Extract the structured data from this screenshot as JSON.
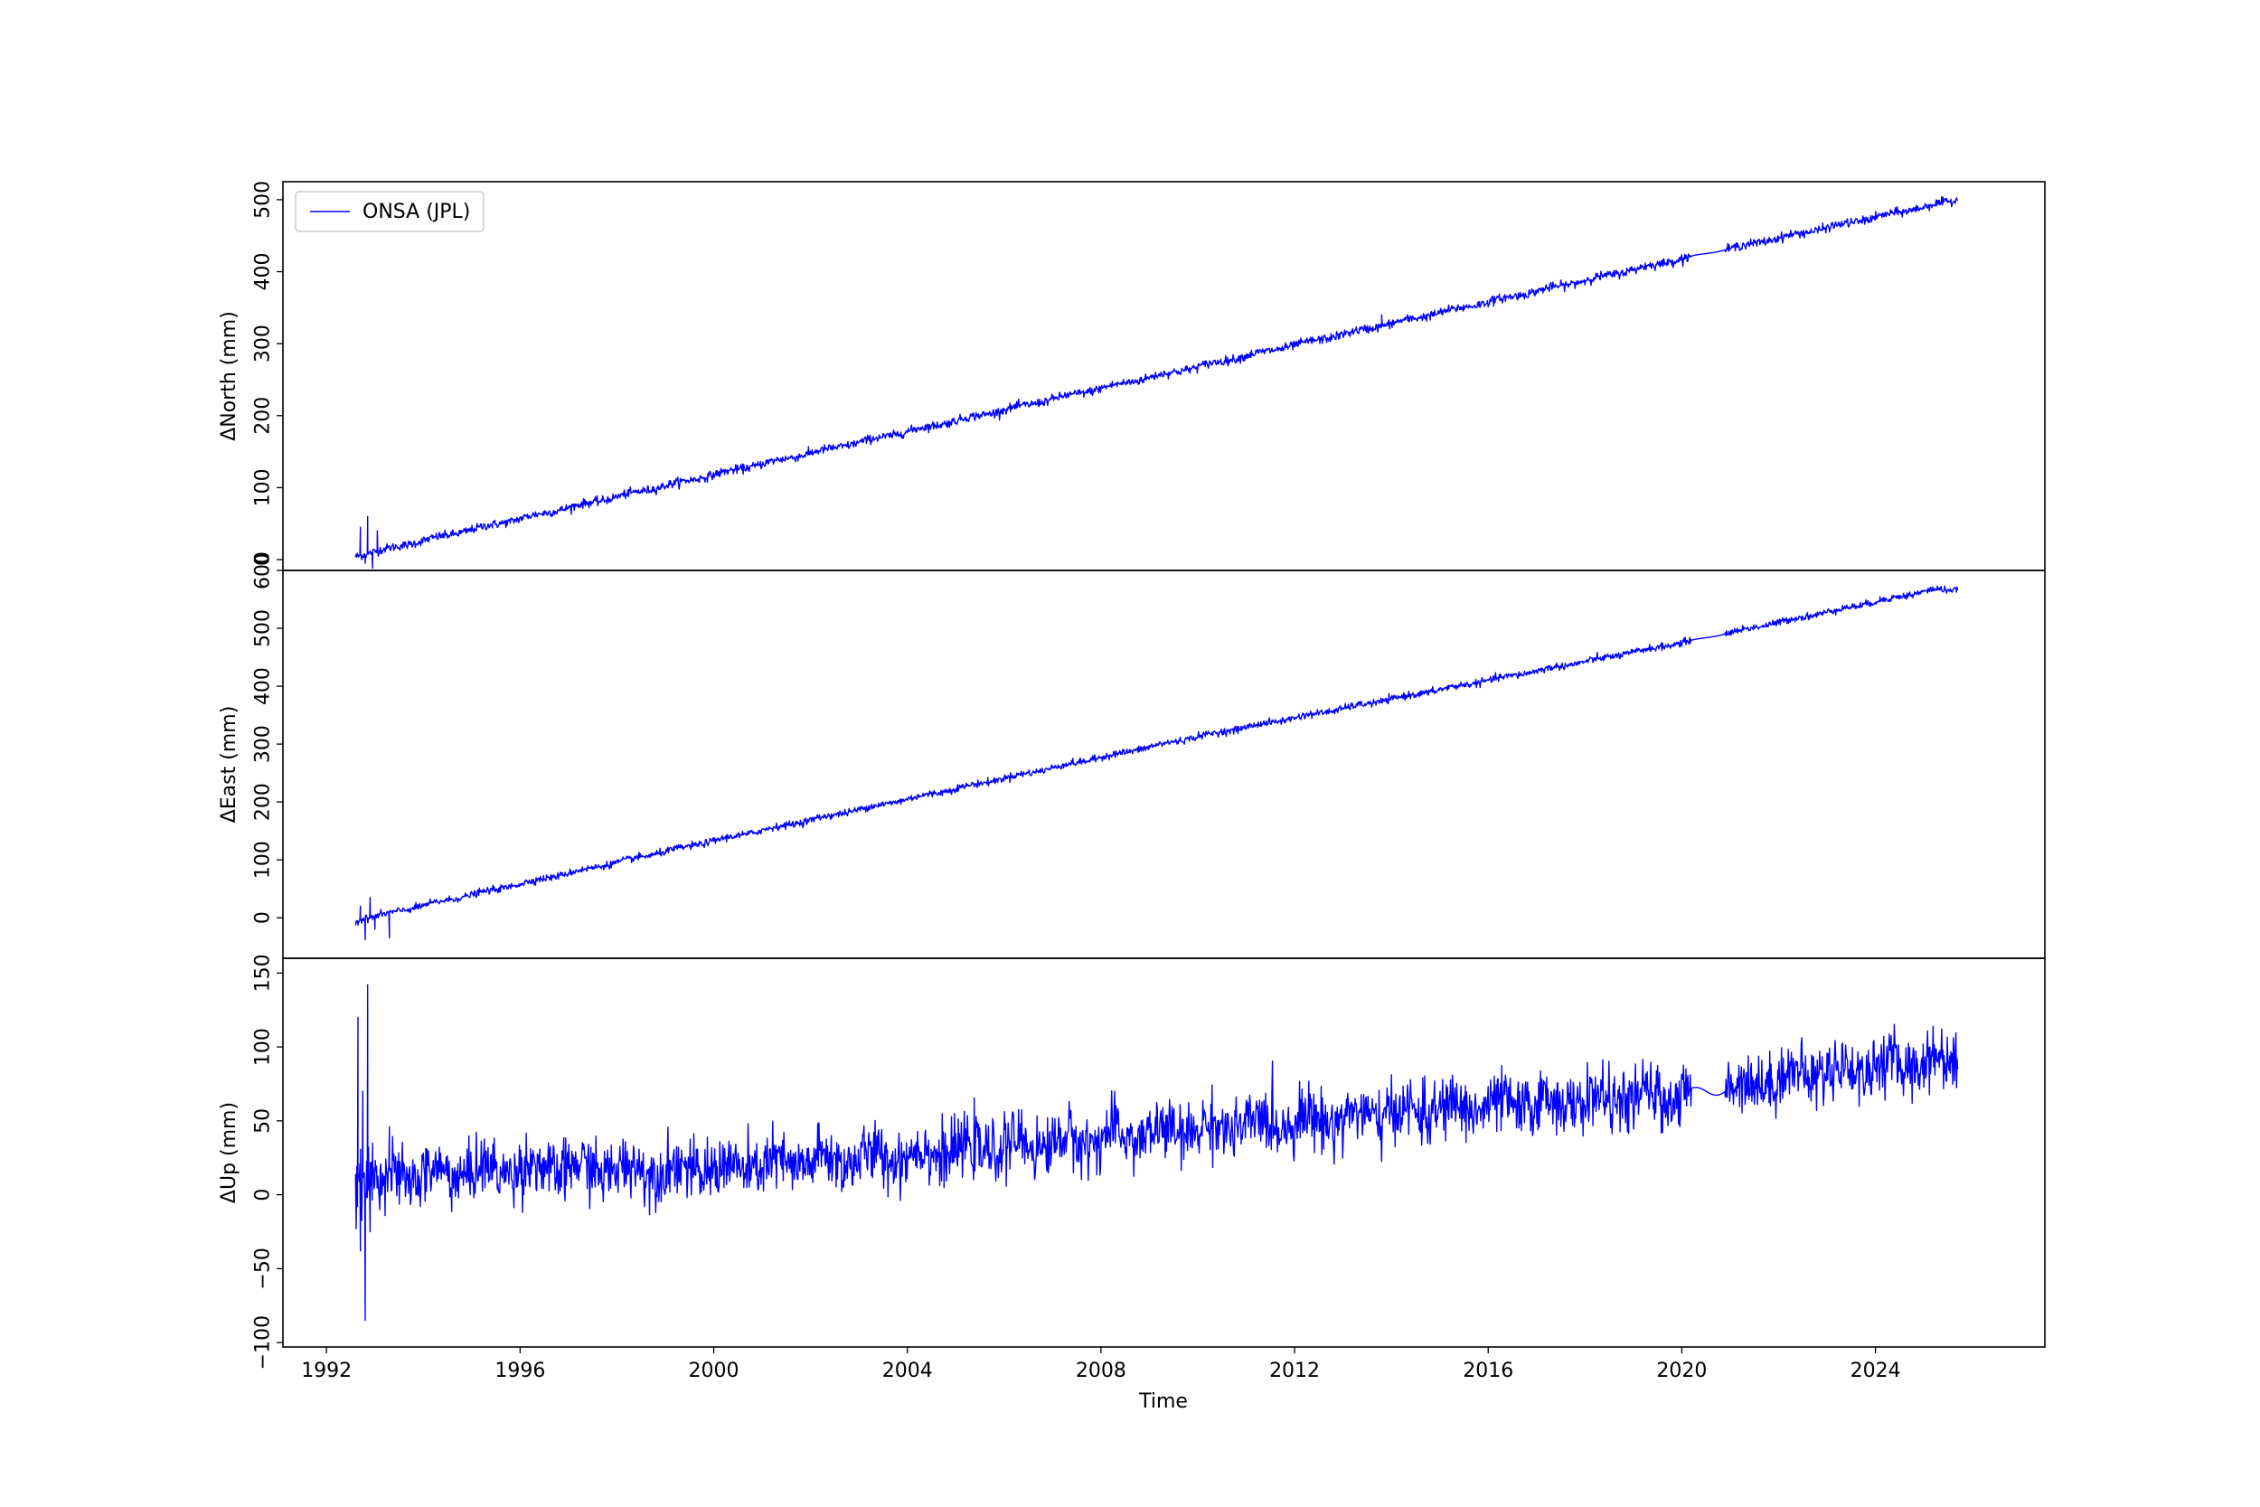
{
  "chart_data": {
    "type": "line",
    "xlabel": "Time",
    "xlim": [
      1991.1,
      2027.5
    ],
    "x_ticks": [
      "1992",
      "1996",
      "2000",
      "2004",
      "2008",
      "2012",
      "2016",
      "2020",
      "2024"
    ],
    "legend": {
      "label": "ONSA (JPL)",
      "placement": "upper-left"
    },
    "line_color": "#0000ff",
    "x_start": 1992.6,
    "x_end": 2025.7,
    "panels": [
      {
        "ylabel": "ΔNorth (mm)",
        "ylim": [
          -15,
          525
        ],
        "y_ticks": [
          0,
          100,
          200,
          300,
          400,
          500
        ],
        "series": {
          "trend": {
            "x": [
              1992.6,
              2000.0,
              2010.0,
              2020.0,
              2025.7
            ],
            "y": [
              5,
              118,
              268,
              418,
              500
            ]
          },
          "noise": 3.0,
          "spikes": [
            {
              "x": 1992.7,
              "y": 45
            },
            {
              "x": 1992.8,
              "y": -5
            },
            {
              "x": 1992.85,
              "y": 60
            },
            {
              "x": 1992.95,
              "y": -12
            },
            {
              "x": 1993.05,
              "y": 40
            },
            {
              "x": 2013.8,
              "y": 340
            }
          ]
        }
      },
      {
        "ylabel": "ΔEast (mm)",
        "ylim": [
          -70,
          600
        ],
        "y_ticks": [
          0,
          100,
          200,
          300,
          400,
          500,
          600
        ],
        "series": {
          "trend": {
            "x": [
              1992.6,
              2000.0,
              2010.0,
              2020.0,
              2025.2,
              2025.7
            ],
            "y": [
              -5,
              133,
              313,
              475,
              567,
              566
            ]
          },
          "noise": 3.0,
          "spikes": [
            {
              "x": 1992.7,
              "y": 20
            },
            {
              "x": 1992.8,
              "y": -38
            },
            {
              "x": 1992.9,
              "y": 35
            },
            {
              "x": 1993.0,
              "y": -20
            },
            {
              "x": 1993.3,
              "y": -35
            }
          ]
        }
      },
      {
        "ylabel": "ΔUp (mm)",
        "ylim": [
          -103,
          160
        ],
        "y_ticks": [
          -100,
          -50,
          0,
          50,
          100,
          150
        ],
        "series": {
          "trend": {
            "x": [
              1992.6,
              1996.0,
              2000.0,
              2004.0,
              2008.0,
              2012.0,
              2016.0,
              2020.0,
              2022.5,
              2025.7
            ],
            "y": [
              10,
              18,
              17,
              27,
              38,
              50,
              60,
              67,
              82,
              92
            ]
          },
          "noise": 10.0,
          "spikes": [
            {
              "x": 1992.65,
              "y": 120
            },
            {
              "x": 1992.7,
              "y": -38
            },
            {
              "x": 1992.75,
              "y": 70
            },
            {
              "x": 1992.8,
              "y": -85
            },
            {
              "x": 1992.85,
              "y": 142
            },
            {
              "x": 1992.9,
              "y": -25
            },
            {
              "x": 1992.95,
              "y": 35
            },
            {
              "x": 1993.1,
              "y": -10
            },
            {
              "x": 1993.3,
              "y": 46
            }
          ]
        }
      }
    ]
  }
}
